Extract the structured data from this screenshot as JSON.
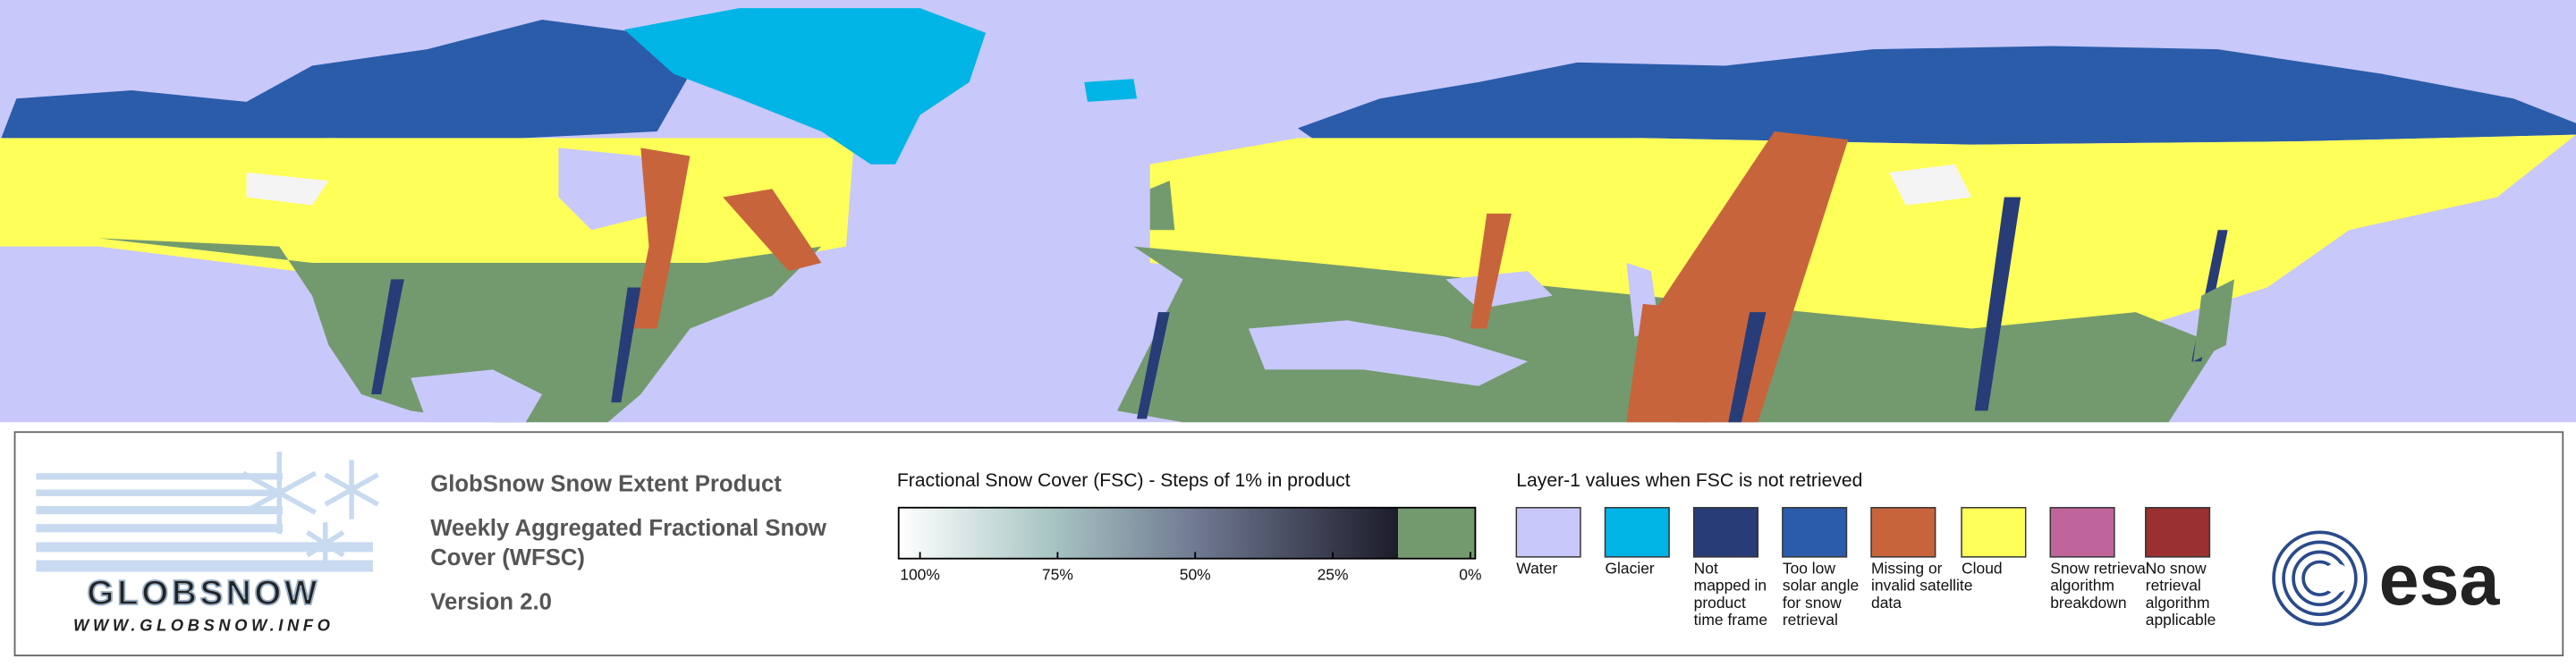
{
  "legend": {
    "product": {
      "title": "GlobSnow Snow Extent Product",
      "subtitle_lines": [
        "Weekly Aggregated Fractional Snow",
        "Cover (WFSC)"
      ],
      "version": "Version 2.0"
    },
    "fsc_scale": {
      "title": "Fractional Snow Cover (FSC) - Steps of 1% in product",
      "ticks": [
        {
          "value": 100,
          "label": "100%"
        },
        {
          "value": 75,
          "label": "75%"
        },
        {
          "value": 50,
          "label": "50%"
        },
        {
          "value": 25,
          "label": "25%"
        },
        {
          "value": 0,
          "label": "0%"
        }
      ]
    },
    "layer1": {
      "title": "Layer-1 values when FSC is not retrieved",
      "items": [
        {
          "lines": [
            "Water"
          ],
          "color": "#c8c8fa"
        },
        {
          "lines": [
            "Glacier"
          ],
          "color": "#00b4e6"
        },
        {
          "lines": [
            "Not",
            "mapped in",
            "product",
            "time frame"
          ],
          "color": "#283c78"
        },
        {
          "lines": [
            "Too low",
            "solar angle",
            "for snow",
            "retrieval"
          ],
          "color": "#2a5caa"
        },
        {
          "lines": [
            "Missing or",
            "invalid satellite",
            "data"
          ],
          "color": "#c8643c"
        },
        {
          "lines": [
            "Cloud"
          ],
          "color": "#ffff5a"
        },
        {
          "lines": [
            "Snow retrieval",
            "algorithm",
            "breakdown"
          ],
          "color": "#c0649c"
        },
        {
          "lines": [
            "No snow",
            "retrieval",
            "algorithm",
            "applicable"
          ],
          "color": "#9a3030"
        }
      ]
    }
  },
  "logos": {
    "globsnow": "GLOBSNOW",
    "globsnow_url": "WWW.GLOBSNOW.INFO",
    "esa": "esa"
  }
}
